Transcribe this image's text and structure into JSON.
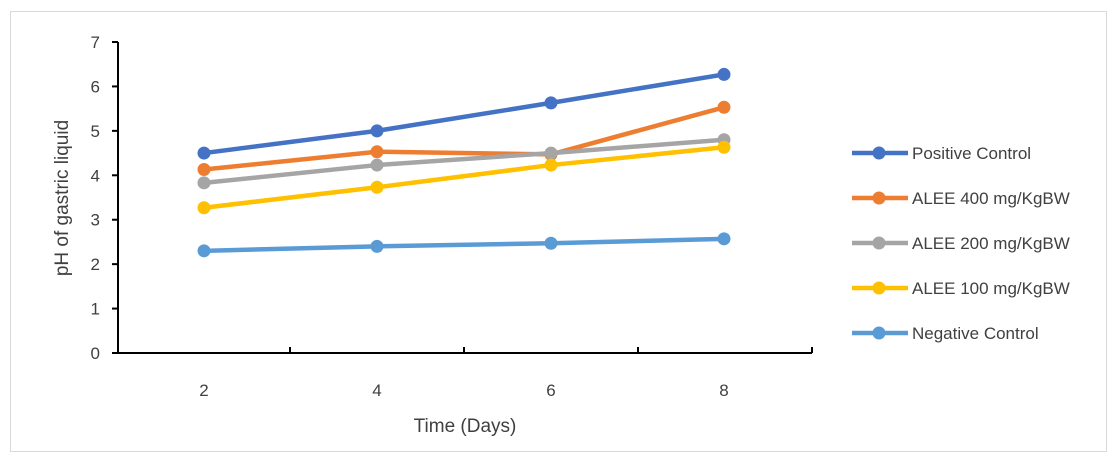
{
  "chart_data": {
    "type": "line",
    "title": "",
    "xlabel": "Time (Days)",
    "ylabel": "pH of gastric liquid",
    "x": [
      2,
      4,
      6,
      8
    ],
    "x_ticks": [
      "2",
      "4",
      "6",
      "8"
    ],
    "y_ticks": [
      "0",
      "1",
      "2",
      "3",
      "4",
      "5",
      "6",
      "7"
    ],
    "ylim": [
      0,
      7
    ],
    "grid": false,
    "legend_position": "right",
    "series": [
      {
        "name": "Positive Control",
        "color": "#4472C4",
        "values": [
          4.5,
          5.0,
          5.63,
          6.27
        ]
      },
      {
        "name": "ALEE 400 mg/KgBW",
        "color": "#ED7D31",
        "values": [
          4.13,
          4.53,
          4.47,
          5.53
        ]
      },
      {
        "name": "ALEE 200 mg/KgBW",
        "color": "#A5A5A5",
        "values": [
          3.83,
          4.23,
          4.5,
          4.8
        ]
      },
      {
        "name": "ALEE 100 mg/KgBW",
        "color": "#FFC000",
        "values": [
          3.27,
          3.73,
          4.23,
          4.63
        ]
      },
      {
        "name": "Negative Control",
        "color": "#5B9BD5",
        "values": [
          2.3,
          2.4,
          2.47,
          2.57
        ]
      }
    ]
  }
}
